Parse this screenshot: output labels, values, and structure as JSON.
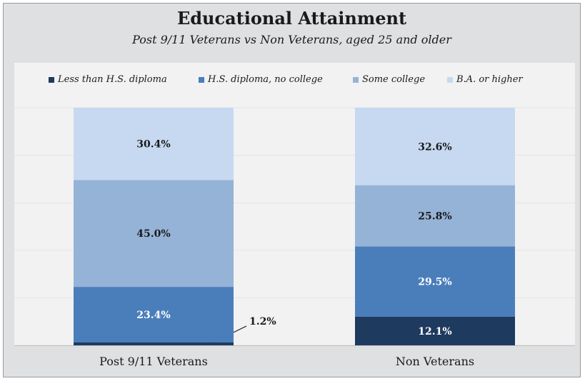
{
  "chart_data": {
    "type": "bar",
    "stacked": true,
    "title": "Educational Attainment",
    "subtitle": "Post 9/11 Veterans vs Non Veterans, aged 25 and older",
    "categories": [
      "Post 9/11 Veterans",
      "Non Veterans"
    ],
    "series": [
      {
        "name": "Less than H.S. diploma",
        "color": "#1f3a5f",
        "values": [
          1.2,
          12.1
        ],
        "labels": [
          "1.2%",
          "12.1%"
        ]
      },
      {
        "name": "H.S. diploma, no college",
        "color": "#4a7ebb",
        "values": [
          23.4,
          29.5
        ],
        "labels": [
          "23.4%",
          "29.5%"
        ]
      },
      {
        "name": "Some college",
        "color": "#95b3d7",
        "values": [
          45.0,
          25.8
        ],
        "labels": [
          "45.0%",
          "25.8%"
        ]
      },
      {
        "name": "B.A. or higher",
        "color": "#c6d9f1",
        "values": [
          30.4,
          32.6
        ],
        "labels": [
          "30.4%",
          "32.6%"
        ]
      }
    ],
    "ylim": [
      0,
      100
    ],
    "legend_position": "top",
    "grid": true
  }
}
